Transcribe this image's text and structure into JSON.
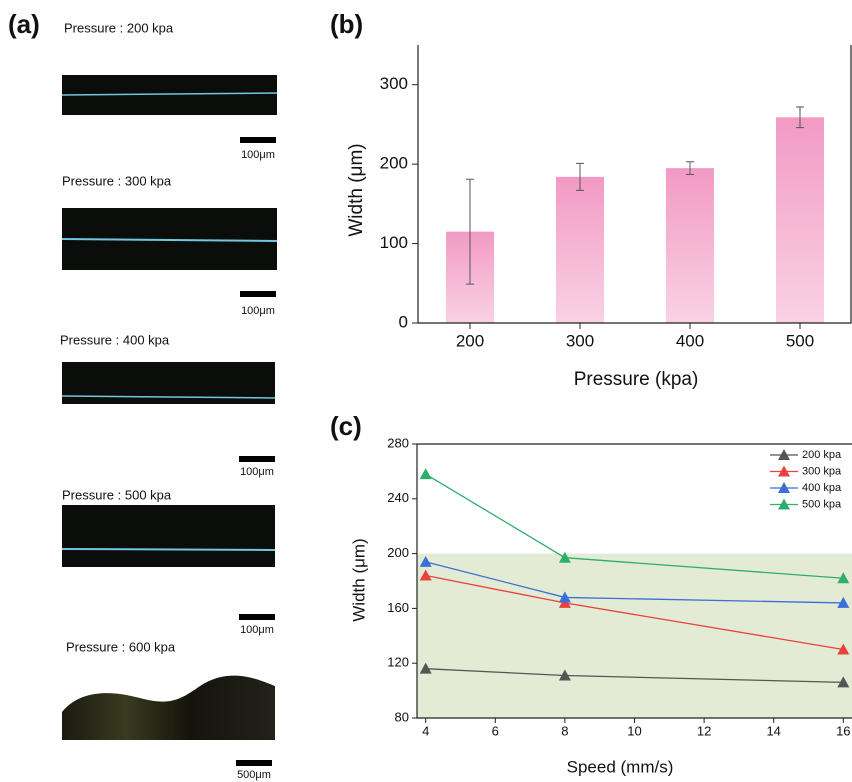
{
  "panel_a": {
    "label": "(a)",
    "images": [
      {
        "caption": "Pressure : 200 kpa",
        "scale": "100μm"
      },
      {
        "caption": "Pressure : 300 kpa",
        "scale": "100μm"
      },
      {
        "caption": "Pressure : 400 kpa",
        "scale": "100μm"
      },
      {
        "caption": "Pressure : 500 kpa",
        "scale": "100μm"
      },
      {
        "caption": "Pressure : 600 kpa",
        "scale": "500μm"
      }
    ]
  },
  "chart_data": [
    {
      "type": "bar",
      "panel_label": "(b)",
      "x_label": "Pressure (kpa)",
      "y_label": "Width (μm)",
      "categories": [
        "200",
        "300",
        "400",
        "500"
      ],
      "values": [
        115,
        184,
        195,
        259
      ],
      "errors": [
        66,
        17,
        8,
        13
      ],
      "color": "#f29ac4",
      "ylim": [
        0,
        350
      ],
      "yticks": [
        0,
        100,
        200,
        300
      ]
    },
    {
      "type": "line",
      "panel_label": "(c)",
      "x_label": "Speed (mm/s)",
      "y_label": "Width (μm)",
      "x": [
        4,
        8,
        16
      ],
      "series": [
        {
          "name": "200 kpa",
          "color": "#555555",
          "values": [
            116,
            111,
            106
          ]
        },
        {
          "name": "300 kpa",
          "color": "#e8423f",
          "values": [
            184,
            164,
            130
          ]
        },
        {
          "name": "400 kpa",
          "color": "#3a6fd8",
          "values": [
            194,
            168,
            164
          ]
        },
        {
          "name": "500 kpa",
          "color": "#2fae6b",
          "values": [
            258,
            197,
            182
          ]
        }
      ],
      "highlight_ylim": [
        80,
        200
      ],
      "highlight_color": "#e3ebd4",
      "xlim": [
        3.75,
        16.25
      ],
      "xticks": [
        4,
        6,
        8,
        10,
        12,
        14,
        16
      ],
      "ylim": [
        80,
        280
      ],
      "yticks": [
        80,
        120,
        160,
        200,
        240,
        280
      ],
      "legend": "upper right"
    }
  ]
}
